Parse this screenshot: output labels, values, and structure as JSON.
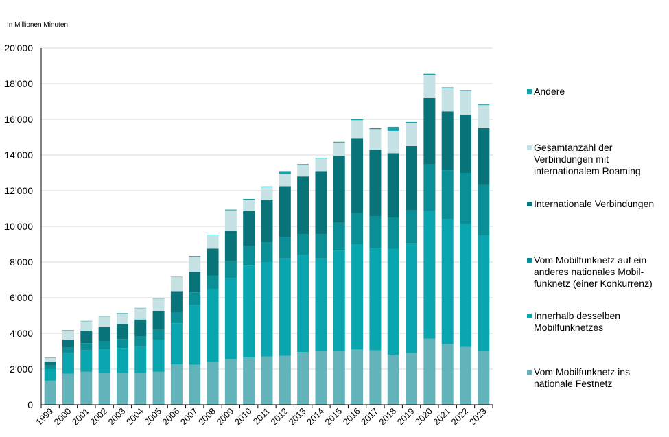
{
  "chart_data": {
    "type": "bar",
    "stacked": true,
    "unit_label": "In Millionen Minuten",
    "ylim": [
      0,
      20000
    ],
    "y_ticks": [
      {
        "value": 0,
        "label": "0"
      },
      {
        "value": 2000,
        "label": "2'000"
      },
      {
        "value": 4000,
        "label": "4'000"
      },
      {
        "value": 6000,
        "label": "6'000"
      },
      {
        "value": 8000,
        "label": "8'000"
      },
      {
        "value": 10000,
        "label": "10'000"
      },
      {
        "value": 12000,
        "label": "12'000"
      },
      {
        "value": 14000,
        "label": "14'000"
      },
      {
        "value": 16000,
        "label": "16'000"
      },
      {
        "value": 18000,
        "label": "18'000"
      },
      {
        "value": 20000,
        "label": "20'000"
      }
    ],
    "grid": true,
    "legend_position": "right",
    "categories": [
      "1999",
      "2000",
      "2001",
      "2002",
      "2003",
      "2004",
      "2005",
      "2006",
      "2007",
      "2008",
      "2009",
      "2010",
      "2011",
      "2012",
      "2013",
      "2014",
      "2015",
      "2016",
      "2017",
      "2018",
      "2019",
      "2020",
      "2021",
      "2022",
      "2023"
    ],
    "series": [
      {
        "name": "Vom Mobilfunknetz ins nationale Festnetz",
        "color": "#63b3bb",
        "values": [
          1350,
          1750,
          1850,
          1800,
          1780,
          1780,
          1850,
          2270,
          2250,
          2400,
          2550,
          2650,
          2700,
          2750,
          2950,
          3000,
          3000,
          3100,
          3050,
          2800,
          2900,
          3700,
          3400,
          3250,
          3000
        ]
      },
      {
        "name": "Innerhalb desselben Mobilfunknetzes",
        "color": "#0aa6b0",
        "values": [
          650,
          1150,
          1200,
          1300,
          1400,
          1500,
          1800,
          2300,
          3350,
          4100,
          4550,
          5150,
          5300,
          5450,
          5450,
          5200,
          5650,
          5900,
          5750,
          5950,
          6150,
          7150,
          7000,
          6900,
          6500
        ]
      },
      {
        "name": "Vom Mobilfunknetz auf ein anderes nationales Mobil-\nfunknetz (einer Konkurrenz)",
        "color": "#0b8f96",
        "values": [
          200,
          300,
          400,
          450,
          500,
          550,
          550,
          600,
          700,
          750,
          950,
          1100,
          1100,
          1200,
          1150,
          1350,
          1550,
          1750,
          1750,
          1750,
          1850,
          2650,
          2750,
          2850,
          2850
        ]
      },
      {
        "name": "Internationale Verbindungen",
        "color": "#087378",
        "values": [
          230,
          450,
          700,
          800,
          850,
          950,
          1050,
          1200,
          1150,
          1500,
          1700,
          1950,
          2400,
          2850,
          3250,
          3550,
          3750,
          4200,
          3750,
          3600,
          3600,
          3700,
          3300,
          3250,
          3150
        ]
      },
      {
        "name": "Gesamtanzahl der Verbindungen mit internationalem Roaming",
        "color": "#c6e2e5",
        "values": [
          200,
          520,
          530,
          600,
          600,
          630,
          700,
          780,
          850,
          750,
          1150,
          650,
          700,
          700,
          650,
          700,
          750,
          1000,
          1150,
          1250,
          1300,
          1300,
          1300,
          1350,
          1300
        ]
      },
      {
        "name": "Andere",
        "color": "#1aa1a8",
        "values": [
          20,
          20,
          20,
          20,
          20,
          20,
          20,
          20,
          40,
          40,
          40,
          40,
          40,
          150,
          40,
          40,
          40,
          50,
          50,
          230,
          50,
          50,
          40,
          40,
          40
        ]
      }
    ],
    "legend_order": [
      5,
      4,
      3,
      2,
      1,
      0
    ]
  }
}
